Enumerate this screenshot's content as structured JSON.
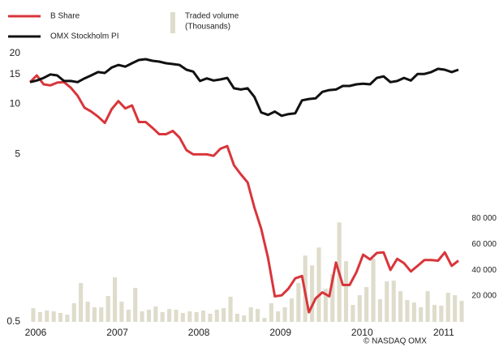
{
  "chart_data": {
    "type": "line",
    "source": "© NASDAQ OMX",
    "x": [
      2006.0,
      2006.083,
      2006.167,
      2006.25,
      2006.333,
      2006.417,
      2006.5,
      2006.583,
      2006.667,
      2006.75,
      2006.833,
      2006.917,
      2007.0,
      2007.083,
      2007.167,
      2007.25,
      2007.333,
      2007.417,
      2007.5,
      2007.583,
      2007.667,
      2007.75,
      2007.833,
      2007.917,
      2008.0,
      2008.083,
      2008.167,
      2008.25,
      2008.333,
      2008.417,
      2008.5,
      2008.583,
      2008.667,
      2008.75,
      2008.833,
      2008.917,
      2009.0,
      2009.083,
      2009.167,
      2009.25,
      2009.333,
      2009.417,
      2009.5,
      2009.583,
      2009.667,
      2009.75,
      2009.833,
      2009.917,
      2010.0,
      2010.083,
      2010.167,
      2010.25,
      2010.333,
      2010.417,
      2010.5,
      2010.583,
      2010.667,
      2010.75,
      2010.833,
      2010.917,
      2011.0,
      2011.083,
      2011.167,
      2011.25
    ],
    "series": [
      {
        "name": "B Share",
        "color": "#d9353b",
        "axis": "y",
        "values": [
          13.5,
          14.8,
          13.1,
          12.9,
          13.4,
          13.5,
          12.5,
          11.2,
          9.5,
          9.0,
          8.4,
          7.7,
          9.3,
          10.4,
          9.4,
          9.8,
          7.8,
          7.8,
          7.2,
          6.6,
          6.6,
          6.9,
          6.3,
          5.3,
          5.0,
          5.0,
          5.0,
          4.9,
          5.4,
          5.6,
          4.3,
          3.8,
          3.4,
          2.4,
          1.8,
          1.2,
          0.71,
          0.72,
          0.79,
          0.91,
          0.94,
          0.57,
          0.69,
          0.75,
          0.71,
          1.13,
          0.83,
          0.83,
          0.99,
          1.26,
          1.18,
          1.29,
          1.3,
          1.02,
          1.19,
          1.12,
          1.0,
          1.08,
          1.17,
          1.17,
          1.16,
          1.3,
          1.08,
          1.16
        ]
      },
      {
        "name": "OMX Stockholm PI",
        "color": "#111111",
        "axis": "y",
        "values": [
          13.5,
          13.8,
          14.3,
          15.0,
          14.8,
          13.7,
          13.7,
          13.5,
          14.2,
          14.8,
          15.5,
          15.3,
          16.5,
          17.1,
          16.7,
          17.5,
          18.3,
          18.5,
          18.1,
          17.9,
          17.5,
          17.3,
          17.1,
          16.0,
          15.6,
          13.7,
          14.2,
          13.8,
          14.0,
          14.3,
          12.4,
          12.2,
          12.4,
          11.0,
          8.9,
          8.6,
          9.0,
          8.5,
          8.7,
          8.8,
          10.5,
          10.7,
          10.8,
          11.8,
          12.1,
          12.2,
          12.8,
          12.8,
          13.1,
          13.2,
          13.1,
          14.3,
          14.6,
          13.5,
          13.7,
          14.3,
          13.8,
          15.1,
          15.1,
          15.5,
          16.2,
          16.0,
          15.5,
          16.0
        ]
      },
      {
        "name": "Traded volume",
        "unit": "(Thousands)",
        "color": "#dedccb",
        "axis": "y2",
        "type": "bar",
        "values": [
          10600,
          7500,
          8750,
          8100,
          6900,
          5600,
          14400,
          30000,
          15600,
          11250,
          11250,
          20000,
          34400,
          15600,
          9400,
          26250,
          8100,
          9400,
          11900,
          7500,
          10000,
          9400,
          6900,
          8100,
          7500,
          8750,
          6250,
          9400,
          10600,
          19400,
          6250,
          5000,
          11250,
          10000,
          3100,
          14400,
          8100,
          11250,
          18100,
          30000,
          51250,
          43750,
          57500,
          25600,
          36900,
          76900,
          46900,
          13100,
          20600,
          26900,
          48750,
          17500,
          31250,
          31900,
          23750,
          16900,
          15000,
          11250,
          23750,
          13100,
          12500,
          22500,
          20600,
          16250
        ]
      }
    ],
    "xlim": [
      2006.0,
      2011.25
    ],
    "xticks": [
      2006,
      2007,
      2008,
      2009,
      2010,
      2011
    ],
    "ylim": [
      0.5,
      20
    ],
    "yscale": "log",
    "yticks": [
      {
        "value": 0.5,
        "label": "0.5"
      },
      5,
      10,
      15,
      20
    ],
    "y2lim": [
      0,
      207500
    ],
    "y2ticks": [
      {
        "value": 20000,
        "label": "20 000"
      },
      {
        "value": 40000,
        "label": "40 000"
      },
      {
        "value": 60000,
        "label": "60 000"
      },
      {
        "value": 80000,
        "label": "80 000"
      }
    ],
    "grid": false,
    "legend": "top-left"
  }
}
